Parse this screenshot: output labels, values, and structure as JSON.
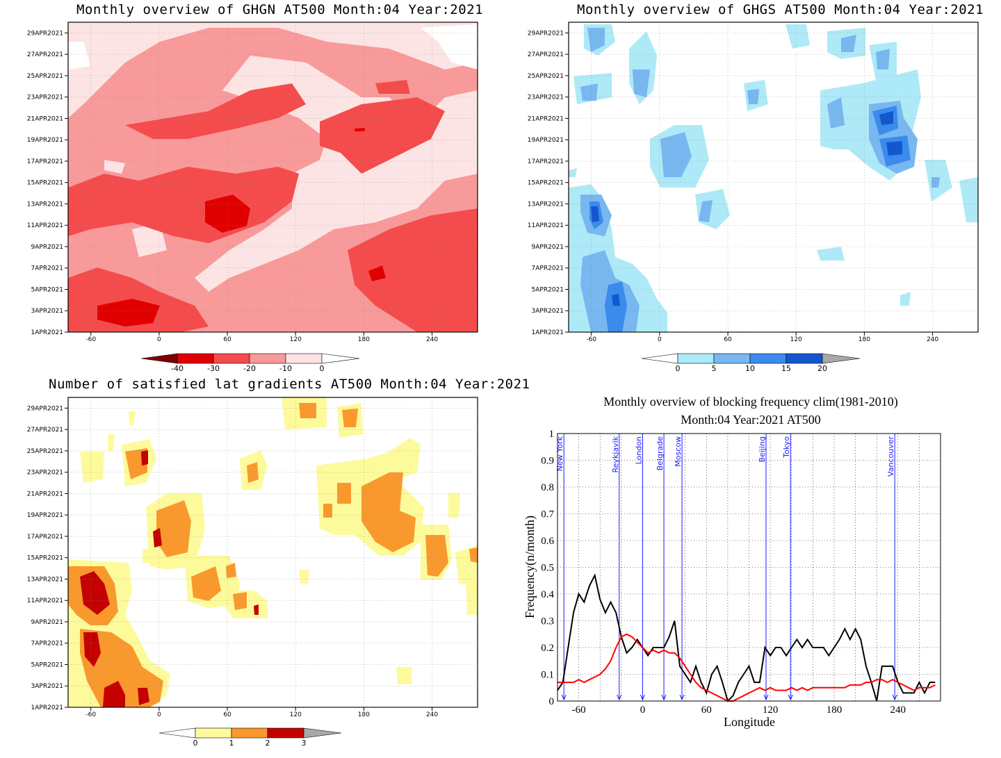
{
  "panels": {
    "ghgn": {
      "title": "Monthly overview of GHGN AT500 Month:04 Year:2021",
      "colorbar_ticks": [
        "-40",
        "-30",
        "-20",
        "-10",
        "0"
      ],
      "colors": [
        "#7a0000",
        "#e00000",
        "#f44c4c",
        "#f89a9a",
        "#fde4e4",
        "#ffffff"
      ]
    },
    "ghgs": {
      "title": "Monthly overview of GHGS AT500 Month:04 Year:2021",
      "colorbar_ticks": [
        "0",
        "5",
        "10",
        "15",
        "20"
      ],
      "colors": [
        "#ffffff",
        "#aee9f8",
        "#78b7ef",
        "#3a8bec",
        "#1357cf",
        "#a8a8a8"
      ]
    },
    "lat": {
      "title": "Number of satisfied lat gradients AT500 Month:04 Year:2021",
      "colorbar_ticks": [
        "0",
        "1",
        "2",
        "3"
      ],
      "colors": [
        "#ffffff",
        "#fdfa9c",
        "#f9992d",
        "#c40000",
        "#a8a8a8"
      ]
    }
  },
  "date_ticks": [
    "29APR2021",
    "27APR2021",
    "25APR2021",
    "23APR2021",
    "21APR2021",
    "19APR2021",
    "17APR2021",
    "15APR2021",
    "13APR2021",
    "11APR2021",
    "9APR2021",
    "7APR2021",
    "5APR2021",
    "3APR2021",
    "1APR2021"
  ],
  "lon_ticks": [
    "-60",
    "0",
    "60",
    "120",
    "180",
    "240"
  ],
  "blocking": {
    "title1": "Monthly overview of blocking frequency clim(1981-2010)",
    "title2": "Month:04 Year:2021  AT500",
    "xlabel": "Longitude",
    "ylabel": "Frequency(n/month)",
    "yticks": [
      "0",
      "0.1",
      "0.2",
      "0.3",
      "0.4",
      "0.5",
      "0.6",
      "0.7",
      "0.8",
      "0.9",
      "1"
    ],
    "xticks": [
      "-60",
      "0",
      "60",
      "120",
      "180",
      "240"
    ],
    "cities": [
      {
        "name": "New York",
        "lon": -74
      },
      {
        "name": "Reykjavik",
        "lon": -22
      },
      {
        "name": "London",
        "lon": 0
      },
      {
        "name": "Belgrade",
        "lon": 20
      },
      {
        "name": "Moscow",
        "lon": 37
      },
      {
        "name": "Beijing",
        "lon": 116
      },
      {
        "name": "Tokyo",
        "lon": 139
      },
      {
        "name": "Vancouver",
        "lon": 237
      }
    ],
    "city_color": "#1a1aff"
  },
  "chart_data": [
    {
      "type": "heatmap",
      "title": "Monthly overview of GHGN AT500 Month:04 Year:2021",
      "x_range": [
        -80,
        280
      ],
      "y_range": [
        "1APR2021",
        "30APR2021"
      ],
      "legend_levels": [
        -40,
        -30,
        -20,
        -10,
        0
      ]
    },
    {
      "type": "heatmap",
      "title": "Monthly overview of GHGS AT500 Month:04 Year:2021",
      "x_range": [
        -80,
        280
      ],
      "y_range": [
        "1APR2021",
        "30APR2021"
      ],
      "legend_levels": [
        0,
        5,
        10,
        15,
        20
      ]
    },
    {
      "type": "heatmap",
      "title": "Number of satisfied lat gradients AT500 Month:04 Year:2021",
      "x_range": [
        -80,
        280
      ],
      "y_range": [
        "1APR2021",
        "30APR2021"
      ],
      "legend_levels": [
        0,
        1,
        2,
        3
      ]
    },
    {
      "type": "line",
      "title": "Monthly overview of blocking frequency clim(1981-2010)",
      "subtitle": "Month:04 Year:2021  AT500",
      "xlabel": "Longitude",
      "ylabel": "Frequency(n/month)",
      "xlim": [
        -80,
        280
      ],
      "ylim": [
        0,
        1
      ],
      "grid": true,
      "series": [
        {
          "color": "#000000",
          "x": [
            -80,
            -75,
            -70,
            -65,
            -60,
            -55,
            -50,
            -45,
            -40,
            -35,
            -30,
            -25,
            -20,
            -15,
            -10,
            -5,
            0,
            5,
            10,
            15,
            20,
            25,
            30,
            35,
            40,
            45,
            50,
            55,
            60,
            65,
            70,
            75,
            80,
            85,
            90,
            95,
            100,
            105,
            110,
            115,
            120,
            125,
            130,
            135,
            140,
            145,
            150,
            155,
            160,
            165,
            170,
            175,
            180,
            185,
            190,
            195,
            200,
            205,
            210,
            215,
            220,
            225,
            230,
            235,
            240,
            245,
            250,
            255,
            260,
            265,
            270,
            275
          ],
          "y": [
            0.04,
            0.07,
            0.2,
            0.33,
            0.4,
            0.37,
            0.43,
            0.47,
            0.38,
            0.33,
            0.37,
            0.33,
            0.24,
            0.18,
            0.2,
            0.23,
            0.2,
            0.17,
            0.2,
            0.2,
            0.2,
            0.24,
            0.3,
            0.13,
            0.1,
            0.07,
            0.13,
            0.07,
            0.03,
            0.1,
            0.13,
            0.07,
            0.0,
            0.02,
            0.07,
            0.1,
            0.13,
            0.07,
            0.07,
            0.2,
            0.17,
            0.2,
            0.2,
            0.17,
            0.2,
            0.23,
            0.2,
            0.23,
            0.2,
            0.2,
            0.2,
            0.17,
            0.2,
            0.23,
            0.27,
            0.23,
            0.27,
            0.23,
            0.13,
            0.07,
            0.0,
            0.13,
            0.13,
            0.13,
            0.07,
            0.03,
            0.03,
            0.03,
            0.07,
            0.03,
            0.07,
            0.07
          ]
        },
        {
          "color": "#ff0000",
          "x": [
            -80,
            -75,
            -70,
            -65,
            -60,
            -55,
            -50,
            -45,
            -40,
            -35,
            -30,
            -25,
            -20,
            -15,
            -10,
            -5,
            0,
            5,
            10,
            15,
            20,
            25,
            30,
            35,
            40,
            45,
            50,
            55,
            60,
            65,
            70,
            75,
            80,
            85,
            90,
            95,
            100,
            105,
            110,
            115,
            120,
            125,
            130,
            135,
            140,
            145,
            150,
            155,
            160,
            165,
            170,
            175,
            180,
            185,
            190,
            195,
            200,
            205,
            210,
            215,
            220,
            225,
            230,
            235,
            240,
            245,
            250,
            255,
            260,
            265,
            270,
            275
          ],
          "y": [
            0.07,
            0.07,
            0.07,
            0.07,
            0.08,
            0.07,
            0.08,
            0.09,
            0.1,
            0.12,
            0.15,
            0.2,
            0.24,
            0.25,
            0.24,
            0.22,
            0.2,
            0.18,
            0.19,
            0.18,
            0.19,
            0.18,
            0.18,
            0.16,
            0.13,
            0.1,
            0.07,
            0.05,
            0.04,
            0.03,
            0.02,
            0.01,
            0.0,
            0.0,
            0.01,
            0.02,
            0.03,
            0.04,
            0.05,
            0.04,
            0.05,
            0.04,
            0.04,
            0.04,
            0.05,
            0.04,
            0.05,
            0.04,
            0.05,
            0.05,
            0.05,
            0.05,
            0.05,
            0.05,
            0.05,
            0.06,
            0.06,
            0.06,
            0.07,
            0.07,
            0.08,
            0.08,
            0.07,
            0.08,
            0.07,
            0.06,
            0.05,
            0.04,
            0.05,
            0.05,
            0.05,
            0.06
          ]
        }
      ]
    }
  ]
}
